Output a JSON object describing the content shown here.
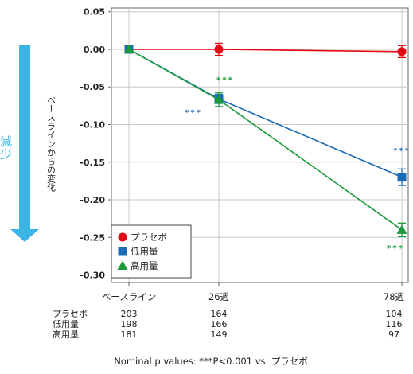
{
  "side_label": {
    "text": "減少",
    "arrow_color": "#3cb4e6"
  },
  "chart_data": {
    "type": "line",
    "ylabel": "ベースラインからの変化",
    "ylim": [
      -0.31,
      0.055
    ],
    "yticks": [
      0.05,
      0.0,
      -0.05,
      -0.1,
      -0.15,
      -0.2,
      -0.25,
      -0.3
    ],
    "ytick_labels": [
      "0.05",
      "0.00",
      "-0.05",
      "-0.10",
      "-0.15",
      "-0.20",
      "-0.25",
      "-0.30"
    ],
    "categories": [
      "ベースライン",
      "26週",
      "78週"
    ],
    "grid": true,
    "legend_position": "bottom-left",
    "series": [
      {
        "name": "プラセボ",
        "color": "#e30613",
        "marker": "circle",
        "values": [
          0.0,
          0.0,
          -0.003
        ],
        "errors": [
          0,
          0.008,
          0.008
        ],
        "n": [
          "203",
          "164",
          "104"
        ],
        "sig": [
          null,
          null,
          null
        ]
      },
      {
        "name": "低用量",
        "color": "#1a6bb5",
        "marker": "square",
        "values": [
          0.0,
          -0.066,
          -0.17
        ],
        "errors": [
          0,
          0.006,
          0.011
        ],
        "n": [
          "198",
          "166",
          "116"
        ],
        "sig": [
          null,
          "***",
          "***"
        ]
      },
      {
        "name": "高用量",
        "color": "#1b9a3b",
        "marker": "triangle",
        "values": [
          0.0,
          -0.067,
          -0.24
        ],
        "errors": [
          0,
          0.009,
          0.009
        ],
        "n": [
          "181",
          "149",
          "97"
        ],
        "sig": [
          null,
          "***",
          "***"
        ]
      }
    ],
    "footnote": "Nominal p values: ***P<0.001 vs. プラセボ"
  }
}
